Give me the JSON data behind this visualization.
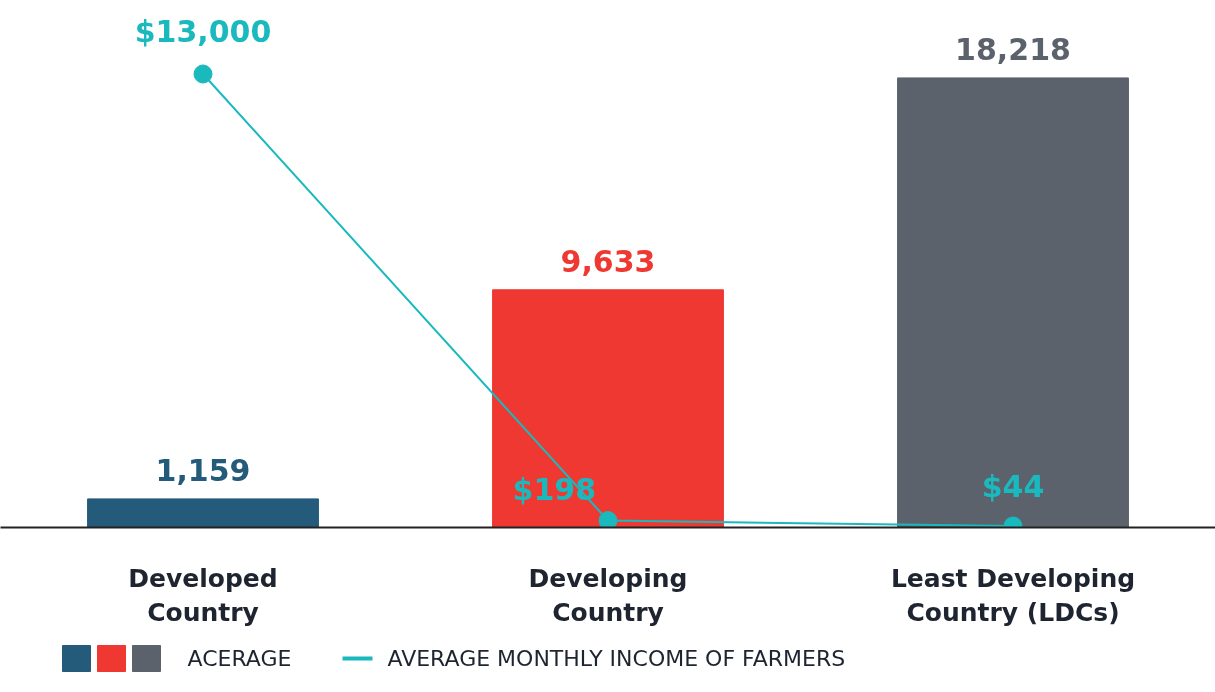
{
  "chart_data": {
    "type": "bar",
    "categories": [
      "Developed Country",
      "Developing Country",
      "Least Developing Country (LDCs)"
    ],
    "series": [
      {
        "name": "ACERAGE",
        "colors": [
          "#245a7a",
          "#ef3832",
          "#5b626b"
        ],
        "values": [
          1159,
          9633,
          18218
        ],
        "value_labels": [
          "1,159",
          "9,633",
          "18,218"
        ]
      },
      {
        "name": "AVERAGE MONTHLY INCOME OF FARMERS",
        "type": "line",
        "axis": "y2",
        "color": "#1ab9be",
        "marker": "circle",
        "values": [
          13000,
          198,
          44
        ],
        "value_labels": [
          "$13,000",
          "$198",
          "$44"
        ]
      }
    ],
    "legend": "bottom",
    "grid": false,
    "tick_labels": "x"
  }
}
